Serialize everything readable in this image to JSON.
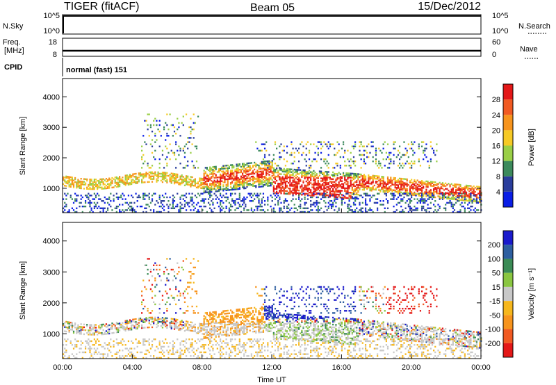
{
  "header": {
    "radar": "TIGER (fitACF)",
    "beam": "Beam 05",
    "date": "15/Dec/2012"
  },
  "strips": {
    "nsky_label": "N.Sky",
    "nsky_ticks": [
      "10^5",
      "10^0"
    ],
    "nsearch_label": "N.Search",
    "nsearch_ticks": [
      "10^5",
      "10^0"
    ],
    "freq_label": "Freq.",
    "freq_unit": "[MHz]",
    "freq_ticks": [
      "18",
      "8"
    ],
    "nave_label": "Nave",
    "nave_ticks": [
      "60",
      "0"
    ],
    "cpid_label": "CPID",
    "cpid_text": "normal (fast) 151"
  },
  "chart_data": [
    {
      "type": "heatmap",
      "quantity": "Power",
      "xlabel": "Time UT",
      "ylabel": "Slant Range [km]",
      "colorbar_label": "Power [dB]",
      "x_ticks": [
        "00:00",
        "04:00",
        "08:00",
        "12:00",
        "16:00",
        "20:00",
        "00:00"
      ],
      "xlim_hours": [
        0,
        24
      ],
      "y_ticks": [
        1000,
        2000,
        3000,
        4000
      ],
      "ylim": [
        200,
        4600
      ],
      "colorbar_ticks": [
        "4",
        "8",
        "12",
        "16",
        "20",
        "24",
        "28"
      ],
      "colorbar_range": [
        0,
        32
      ],
      "colors": [
        "#0a1ee6",
        "#2a3d9c",
        "#3c8a5c",
        "#9acf47",
        "#f6ca26",
        "#f7941d",
        "#f15a22",
        "#e41818"
      ]
    },
    {
      "type": "heatmap",
      "quantity": "Velocity",
      "xlabel": "Time UT",
      "ylabel": "Slant Range [km]",
      "colorbar_label": "Velocity [m s⁻¹]",
      "x_ticks": [
        "00:00",
        "04:00",
        "08:00",
        "12:00",
        "16:00",
        "20:00",
        "00:00"
      ],
      "xlim_hours": [
        0,
        24
      ],
      "y_ticks": [
        1000,
        2000,
        3000,
        4000
      ],
      "ylim": [
        200,
        4600
      ],
      "colorbar_ticks": [
        "200",
        "100",
        "50",
        "15",
        "-15",
        "-50",
        "-100",
        "-200"
      ],
      "colors": [
        "#1a1acc",
        "#2e5fa0",
        "#3b8b56",
        "#8ac641",
        "#c8c8c8",
        "#f6b71d",
        "#f7941d",
        "#f15a22",
        "#e41818"
      ]
    }
  ]
}
